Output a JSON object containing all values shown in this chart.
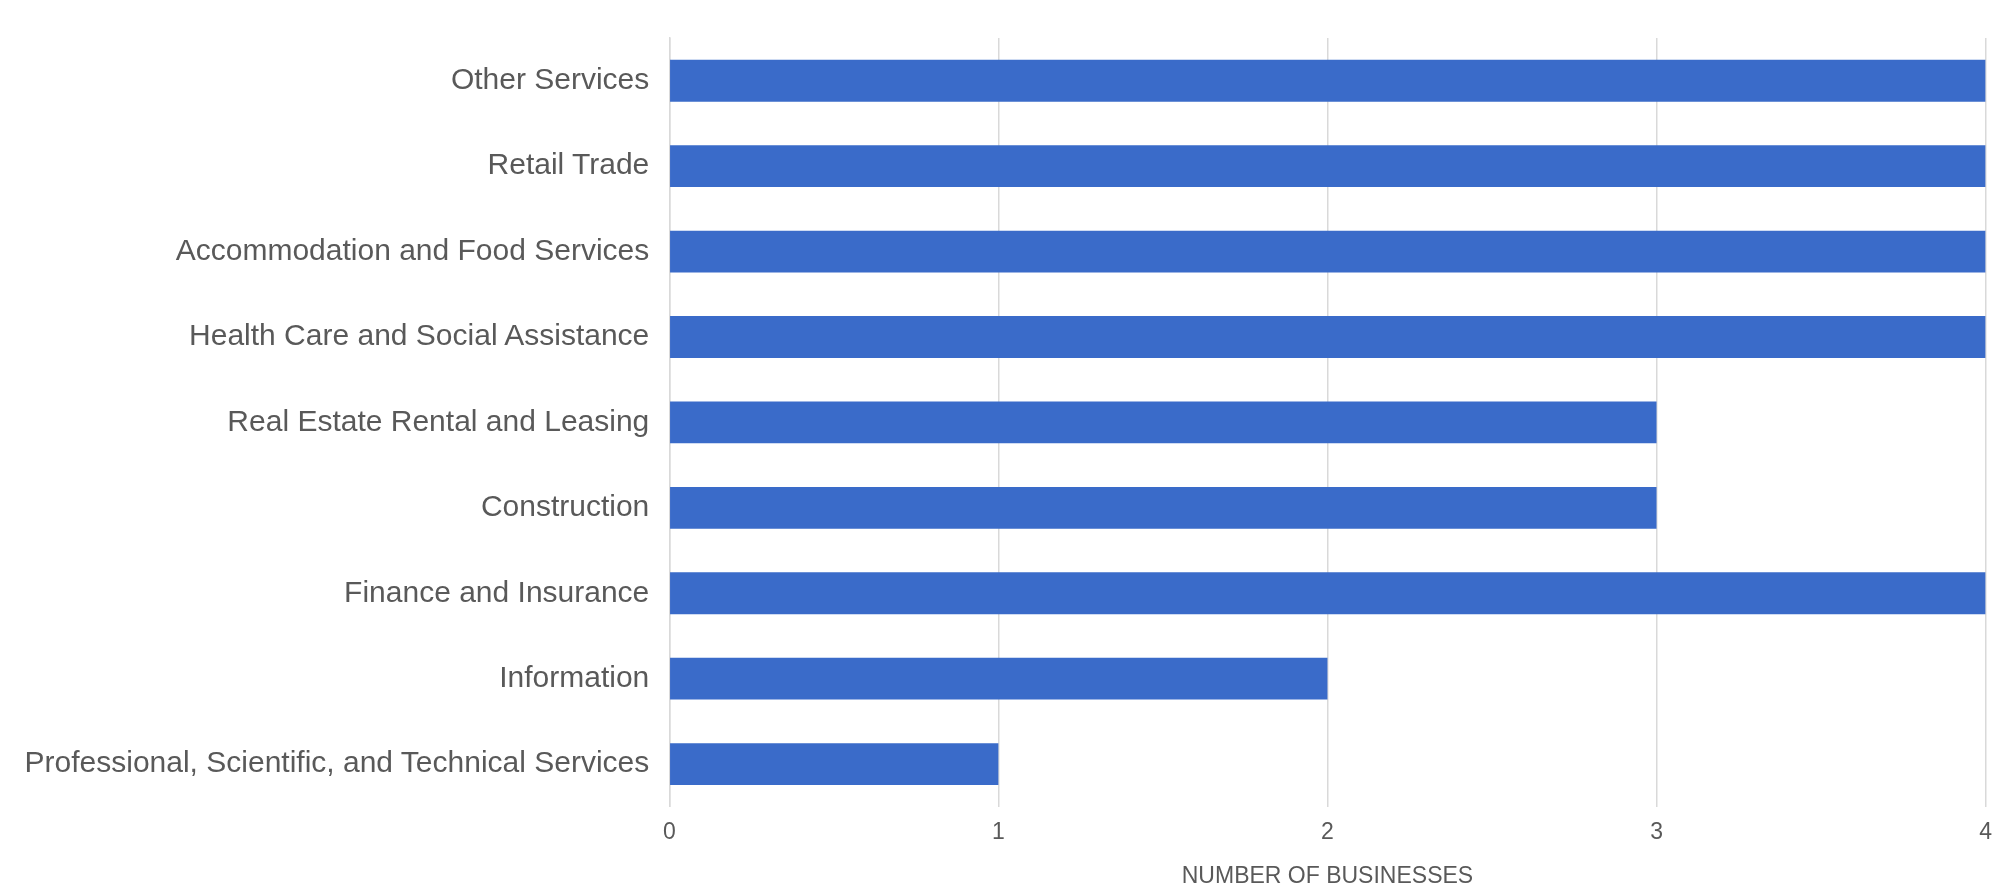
{
  "chart_data": {
    "type": "bar",
    "orientation": "horizontal",
    "xlabel": "NUMBER OF BUSINESSES",
    "categories": [
      "Other Services",
      "Retail Trade",
      "Accommodation and Food Services",
      "Health Care and Social Assistance",
      "Real Estate Rental and Leasing",
      "Construction",
      "Finance and Insurance",
      "Information",
      "Professional, Scientific, and Technical Services"
    ],
    "values": [
      4,
      4,
      4,
      4,
      3,
      3,
      4,
      2,
      1
    ],
    "color": "#3a6bc9",
    "xlim": [
      0,
      4
    ],
    "xticks": [
      0,
      1,
      2,
      3,
      4
    ],
    "grid": "x",
    "legend": false
  }
}
